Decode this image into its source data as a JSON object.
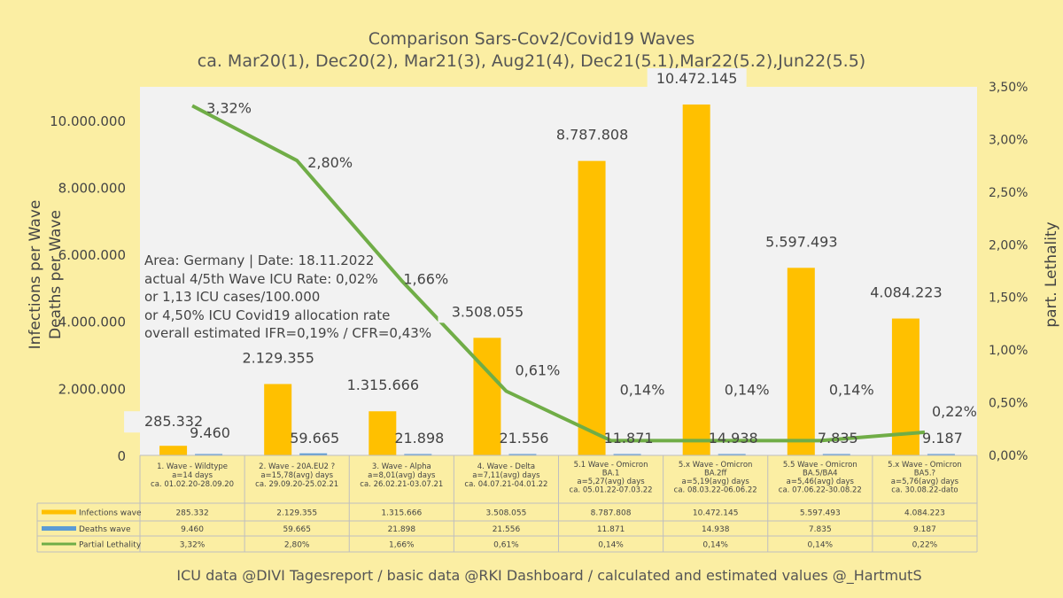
{
  "page": {
    "title_line1": "Comparison Sars-Cov2/Covid19 Waves",
    "title_line2": "ca. Mar20(1), Dec20(2), Mar21(3), Aug21(4), Dec21(5.1),Mar22(5.2),Jun22(5.5)",
    "footer": "ICU data @DIVI Tagesreport /  basic data @RKI Dashboard / calculated and estimated values  @_HartmutS",
    "annotation": [
      "Area: Germany | Date: 18.11.2022",
      "actual 4/5th Wave ICU Rate: 0,02%",
      "or 1,13 ICU cases/100.000",
      "or 4,50% ICU Covid19 allocation rate",
      "overall estimated IFR=0,19%  / CFR=0,43%"
    ],
    "colors": {
      "background": "#fbeea3",
      "plot": "#f2f2f2",
      "infections": "#ffc000",
      "deaths": "#5b9bd5",
      "lethality": "#70ad47"
    }
  },
  "chart_data": {
    "type": "bar",
    "title": "Comparison Sars-Cov2/Covid19 Waves",
    "subtitle": "ca. Mar20(1), Dec20(2), Mar21(3), Aug21(4), Dec21(5.1),Mar22(5.2),Jun22(5.5)",
    "ylabel_left_1": "Infections per Wave",
    "ylabel_left_2": "Deaths per Wave",
    "ylabel_right": "part. Lethality",
    "ylim_left": [
      0,
      11000000
    ],
    "ylim_right": [
      0,
      3.5
    ],
    "y_ticks_left": [
      "0",
      "2.000.000",
      "4.000.000",
      "6.000.000",
      "8.000.000",
      "10.000.000"
    ],
    "y_ticks_right": [
      "0,00%",
      "0,50%",
      "1,00%",
      "1,50%",
      "2,00%",
      "2,50%",
      "3,00%",
      "3,50%"
    ],
    "categories": [
      [
        "1. Wave - Wildtype",
        "a=14 days",
        "ca. 01.02.20-28.09.20"
      ],
      [
        "2. Wave - 20A.EU2 ?",
        "a=15,78(avg) days",
        "ca. 29.09.20-25.02.21"
      ],
      [
        "3. Wave - Alpha",
        "a=8,01(avg) days",
        "ca. 26.02.21-03.07.21"
      ],
      [
        "4. Wave - Delta",
        "a=7,11(avg) days",
        "ca. 04.07.21-04.01.22"
      ],
      [
        "5.1 Wave - Omicron",
        "BA.1",
        "a=5,27(avg) days",
        "ca. 05.01.22-07.03.22"
      ],
      [
        "5.x Wave - Omicron",
        "BA.2ff",
        "a=5,19(avg) days",
        "ca. 08.03.22-06.06.22"
      ],
      [
        "5.5 Wave - Omicron",
        "BA.5/BA4",
        "a=5,46(avg) days",
        "ca. 07.06.22-30.08.22"
      ],
      [
        "5.x Wave - Omicron",
        "BA5.?",
        "a=5,76(avg) days",
        "ca. 30.08.22-dato"
      ]
    ],
    "series": [
      {
        "name": "Infections wave",
        "kind": "bar",
        "axis": "left",
        "values": [
          285332,
          2129355,
          1315666,
          3508055,
          8787808,
          10472145,
          5597493,
          4084223
        ],
        "labels": [
          "285.332",
          "2.129.355",
          "1.315.666",
          "3.508.055",
          "8.787.808",
          "10.472.145",
          "5.597.493",
          "4.084.223"
        ]
      },
      {
        "name": "Deaths wave",
        "kind": "bar",
        "axis": "left",
        "values": [
          9460,
          59665,
          21898,
          21556,
          11871,
          14938,
          7835,
          9187
        ],
        "labels": [
          "9.460",
          "59.665",
          "21.898",
          "21.556",
          "11.871",
          "14.938",
          "7.835",
          "9.187"
        ]
      },
      {
        "name": "Partial Lethality",
        "kind": "line",
        "axis": "right",
        "values": [
          3.32,
          2.8,
          1.66,
          0.61,
          0.14,
          0.14,
          0.14,
          0.22
        ],
        "labels": [
          "3,32%",
          "2,80%",
          "1,66%",
          "0,61%",
          "0,14%",
          "0,14%",
          "0,14%",
          "0,22%"
        ]
      }
    ],
    "legend_placement": "data table below axis"
  }
}
